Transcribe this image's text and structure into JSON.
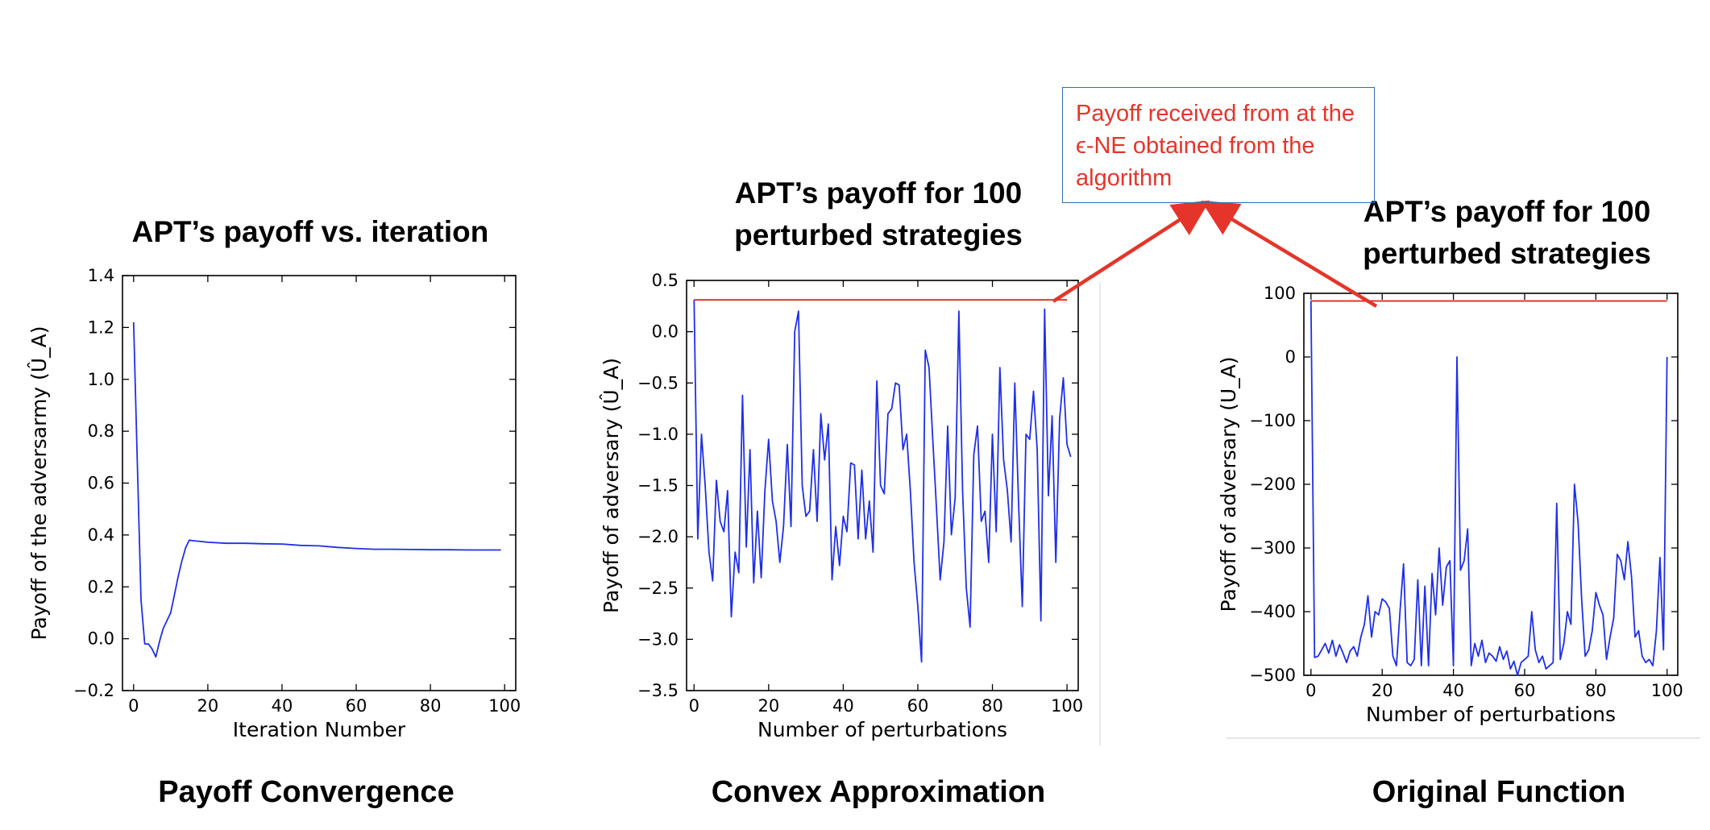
{
  "panels": {
    "left": {
      "title_line1": "APT’s payoff vs. iteration",
      "title_line2": "",
      "caption": "Payoff Convergence"
    },
    "middle": {
      "title_line1": "APT’s payoff for 100",
      "title_line2": "perturbed strategies",
      "caption": "Convex Approximation"
    },
    "right": {
      "title_line1": "APT’s payoff for 100",
      "title_line2": "perturbed strategies",
      "caption": "Original Function"
    }
  },
  "callout": {
    "text": "Payoff received from at the ϵ-NE obtained from the algorithm"
  },
  "colors": {
    "line": "#1f2fe8",
    "reference": "#e5352a",
    "callout_border": "#2e6db4",
    "callout_text": "#e5352a"
  },
  "chart_data": [
    {
      "type": "line",
      "title": "APT’s payoff vs. iteration",
      "xlabel": "Iteration Number",
      "ylabel": "Payoff of the adversarmy (Û_A)",
      "xlim": [
        -3,
        103
      ],
      "ylim": [
        -0.2,
        1.4
      ],
      "xticks": [
        0,
        20,
        40,
        60,
        80,
        100
      ],
      "yticks": [
        -0.2,
        0.0,
        0.2,
        0.4,
        0.6,
        0.8,
        1.0,
        1.2,
        1.4
      ],
      "ytick_labels": [
        "−0.2",
        "0.0",
        "0.2",
        "0.4",
        "0.6",
        "0.8",
        "1.0",
        "1.2",
        "1.4"
      ],
      "grid": false,
      "series": [
        {
          "x": [
            0,
            1,
            2,
            3,
            4,
            5,
            6,
            7,
            8,
            9,
            10,
            11,
            12,
            13,
            14,
            15,
            16,
            18,
            20,
            25,
            30,
            35,
            40,
            45,
            50,
            55,
            60,
            65,
            70,
            75,
            80,
            85,
            90,
            95,
            99
          ],
          "values": [
            1.22,
            0.68,
            0.15,
            -0.02,
            -0.02,
            -0.04,
            -0.07,
            -0.01,
            0.04,
            0.07,
            0.1,
            0.17,
            0.24,
            0.3,
            0.35,
            0.38,
            0.378,
            0.375,
            0.372,
            0.368,
            0.368,
            0.366,
            0.365,
            0.36,
            0.358,
            0.352,
            0.348,
            0.345,
            0.345,
            0.344,
            0.343,
            0.343,
            0.342,
            0.342,
            0.342
          ]
        }
      ]
    },
    {
      "type": "line",
      "title": "APT’s payoff for 100 perturbed strategies",
      "xlabel": "Number of perturbations",
      "ylabel": "Payoff of adversary (Û_A)",
      "xlim": [
        -2,
        103
      ],
      "ylim": [
        -3.5,
        0.5
      ],
      "xticks": [
        0,
        20,
        40,
        60,
        80,
        100
      ],
      "yticks": [
        -3.5,
        -3.0,
        -2.5,
        -2.0,
        -1.5,
        -1.0,
        -0.5,
        0.0,
        0.5
      ],
      "ytick_labels": [
        "−3.5",
        "−3.0",
        "−2.5",
        "−2.0",
        "−1.5",
        "−1.0",
        "−0.5",
        "0.0",
        "0.5"
      ],
      "grid": false,
      "reference_line": {
        "value": 0.31,
        "x_range": [
          0,
          100
        ]
      },
      "series": [
        {
          "x_start": 0,
          "values": [
            0.31,
            -2.02,
            -1.0,
            -1.5,
            -2.15,
            -2.43,
            -1.45,
            -1.85,
            -1.95,
            -1.55,
            -2.78,
            -2.15,
            -2.35,
            -0.62,
            -2.1,
            -1.15,
            -2.45,
            -1.75,
            -2.4,
            -1.55,
            -1.05,
            -1.65,
            -1.85,
            -2.25,
            -1.9,
            -1.1,
            -1.9,
            0.0,
            0.2,
            -1.5,
            -1.8,
            -1.75,
            -1.15,
            -1.85,
            -0.8,
            -1.25,
            -0.9,
            -2.42,
            -1.9,
            -2.28,
            -1.8,
            -1.95,
            -1.28,
            -1.3,
            -2.02,
            -1.35,
            -2.02,
            -1.65,
            -2.15,
            -0.48,
            -1.5,
            -1.58,
            -0.8,
            -0.75,
            -0.5,
            -0.52,
            -1.15,
            -1.0,
            -1.55,
            -2.25,
            -2.68,
            -3.22,
            -0.18,
            -0.35,
            -1.05,
            -1.72,
            -2.42,
            -2.05,
            -0.92,
            -1.98,
            -1.62,
            0.2,
            -1.55,
            -2.5,
            -2.88,
            -1.2,
            -0.92,
            -1.85,
            -1.75,
            -2.25,
            -1.0,
            -1.95,
            -0.35,
            -1.25,
            -1.55,
            -2.05,
            -0.5,
            -1.65,
            -2.68,
            -1.0,
            -1.05,
            -0.58,
            -1.15,
            -2.82,
            0.22,
            -1.6,
            -0.82,
            -2.25,
            -0.85,
            -0.45,
            -1.1,
            -1.22
          ]
        }
      ]
    },
    {
      "type": "line",
      "title": "APT’s payoff for 100 perturbed strategies",
      "xlabel": "Number of perturbations",
      "ylabel": "Payoff of adversary (U_A)",
      "xlim": [
        -2,
        103
      ],
      "ylim": [
        -500,
        100
      ],
      "xticks": [
        0,
        20,
        40,
        60,
        80,
        100
      ],
      "yticks": [
        -500,
        -400,
        -300,
        -200,
        -100,
        0,
        100
      ],
      "ytick_labels": [
        "−500",
        "−400",
        "−300",
        "−200",
        "−100",
        "0",
        "100"
      ],
      "grid": false,
      "reference_line": {
        "value": 88,
        "x_range": [
          0,
          100
        ]
      },
      "series": [
        {
          "x_start": 0,
          "values": [
            88,
            -472,
            -470,
            -460,
            -450,
            -465,
            -445,
            -470,
            -452,
            -465,
            -480,
            -462,
            -455,
            -470,
            -440,
            -420,
            -375,
            -440,
            -400,
            -405,
            -380,
            -385,
            -395,
            -470,
            -485,
            -400,
            -325,
            -480,
            -485,
            -475,
            -350,
            -485,
            -360,
            -485,
            -340,
            -405,
            -300,
            -390,
            -330,
            -320,
            -485,
            0,
            -335,
            -320,
            -270,
            -485,
            -450,
            -470,
            -445,
            -480,
            -465,
            -470,
            -478,
            -455,
            -475,
            -462,
            -490,
            -478,
            -500,
            -480,
            -475,
            -470,
            -400,
            -460,
            -480,
            -470,
            -490,
            -485,
            -480,
            -230,
            -475,
            -450,
            -400,
            -420,
            -200,
            -260,
            -380,
            -470,
            -460,
            -430,
            -370,
            -390,
            -405,
            -475,
            -440,
            -410,
            -310,
            -320,
            -350,
            -290,
            -345,
            -440,
            -430,
            -470,
            -480,
            -475,
            -485,
            -430,
            -315,
            -460,
            0
          ]
        }
      ]
    }
  ]
}
